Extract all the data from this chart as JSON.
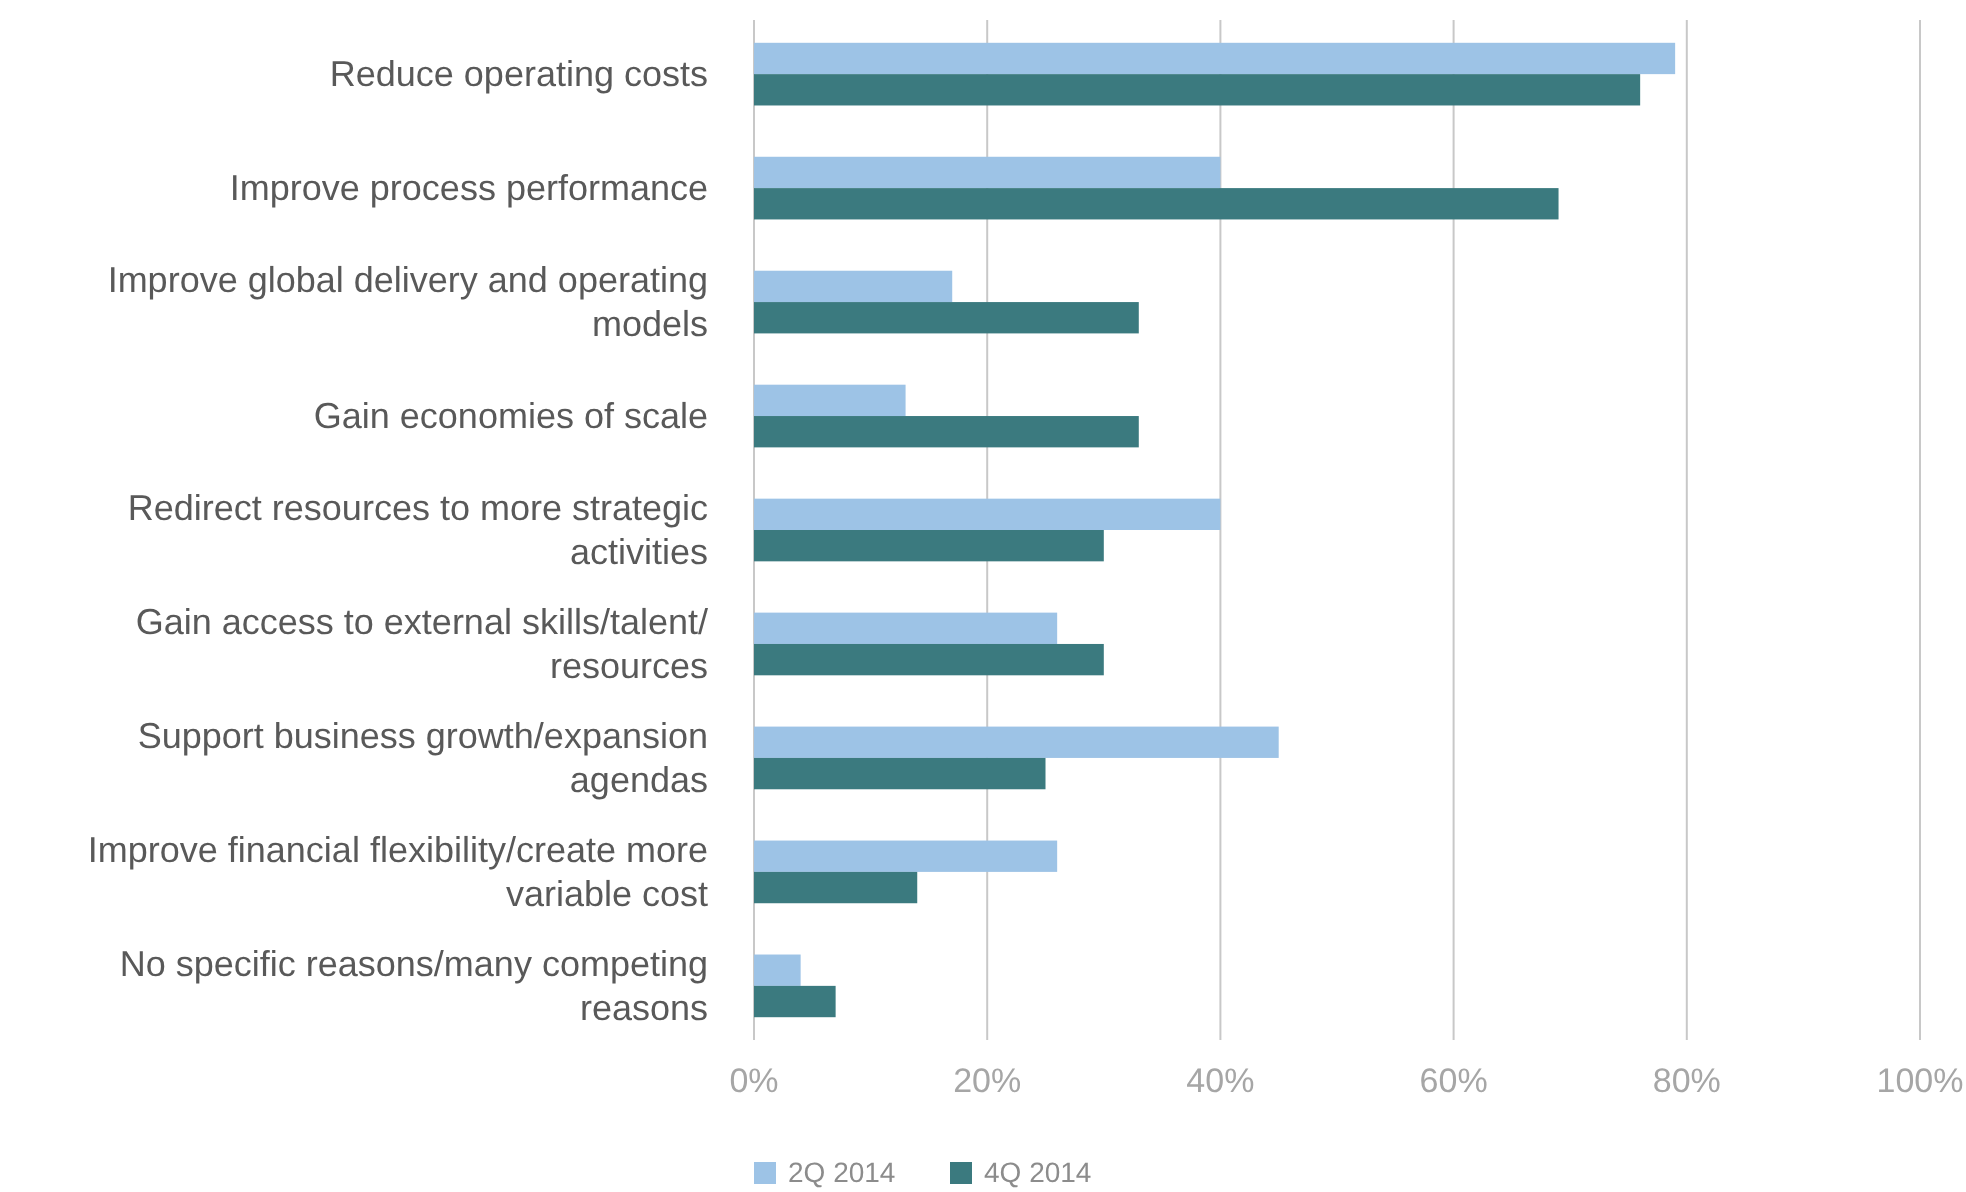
{
  "chart_data": {
    "type": "bar",
    "orientation": "horizontal",
    "categories": [
      "Reduce operating costs",
      "Improve process performance",
      "Improve global delivery and operating models",
      "Gain economies of scale",
      "Redirect resources to more strategic activities",
      "Gain access to external skills/talent/resources",
      "Support business growth/expansion agendas",
      "Improve financial flexibility/create more variable cost",
      "No specific reasons/many competing reasons"
    ],
    "series": [
      {
        "name": "2Q 2014",
        "color": "#9dc3e6",
        "values": [
          79,
          40,
          17,
          13,
          40,
          26,
          45,
          26,
          4
        ]
      },
      {
        "name": "4Q 2014",
        "color": "#3b7a7f",
        "values": [
          76,
          69,
          33,
          33,
          30,
          30,
          25,
          14,
          7
        ]
      }
    ],
    "xlim": [
      0,
      100
    ],
    "xticks": [
      {
        "value": 0,
        "label": "0%"
      },
      {
        "value": 20,
        "label": "20%"
      },
      {
        "value": 40,
        "label": "40%"
      },
      {
        "value": 60,
        "label": "60%"
      },
      {
        "value": 80,
        "label": "80%"
      },
      {
        "value": 100,
        "label": "100%"
      }
    ],
    "grid": "x",
    "legend": "bottom"
  }
}
